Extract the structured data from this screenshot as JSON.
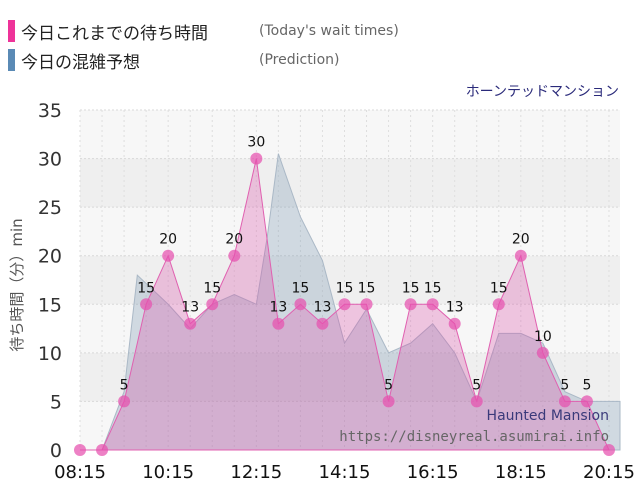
{
  "legend": {
    "actual": {
      "title": "今日これまでの待ち時間",
      "sub": "(Today's wait times)",
      "color": "#ee3399"
    },
    "prediction": {
      "title": "今日の混雑予想",
      "sub": "(Prediction)",
      "color": "#5a8ab5"
    }
  },
  "attraction_name": "ホーンテッドマンション",
  "watermark": {
    "name": "Haunted Mansion",
    "url": "https://disneyreal.asumirai.info"
  },
  "chart_data": {
    "type": "area",
    "ylabel": "待ち時間（分）min",
    "ylim": [
      0,
      35
    ],
    "yticks": [
      0,
      5,
      10,
      15,
      20,
      25,
      30,
      35
    ],
    "xlim": [
      8.25,
      20.5
    ],
    "xticks": [
      {
        "label": "08:15",
        "t": 8.25
      },
      {
        "label": "10:15",
        "t": 10.25
      },
      {
        "label": "12:15",
        "t": 12.25
      },
      {
        "label": "14:15",
        "t": 14.25
      },
      {
        "label": "16:15",
        "t": 16.25
      },
      {
        "label": "18:15",
        "t": 18.25
      },
      {
        "label": "20:15",
        "t": 20.25
      }
    ],
    "grid": true,
    "series": [
      {
        "name": "今日の混雑予想",
        "points": [
          {
            "t": 8.25,
            "v": 0
          },
          {
            "t": 8.75,
            "v": 0
          },
          {
            "t": 9.25,
            "v": 6
          },
          {
            "t": 9.55,
            "v": 18
          },
          {
            "t": 10.25,
            "v": 15
          },
          {
            "t": 10.75,
            "v": 12.5
          },
          {
            "t": 11.25,
            "v": 15
          },
          {
            "t": 11.75,
            "v": 16
          },
          {
            "t": 12.25,
            "v": 15
          },
          {
            "t": 12.5,
            "v": 22
          },
          {
            "t": 12.75,
            "v": 30.5
          },
          {
            "t": 13.25,
            "v": 24
          },
          {
            "t": 13.75,
            "v": 19.5
          },
          {
            "t": 14.25,
            "v": 11
          },
          {
            "t": 14.75,
            "v": 14.5
          },
          {
            "t": 15.25,
            "v": 10
          },
          {
            "t": 15.75,
            "v": 11
          },
          {
            "t": 16.25,
            "v": 13
          },
          {
            "t": 16.75,
            "v": 10
          },
          {
            "t": 17.25,
            "v": 5
          },
          {
            "t": 17.75,
            "v": 12
          },
          {
            "t": 18.25,
            "v": 12
          },
          {
            "t": 18.75,
            "v": 11
          },
          {
            "t": 19.25,
            "v": 6
          },
          {
            "t": 19.75,
            "v": 5
          },
          {
            "t": 20.5,
            "v": 5
          }
        ]
      },
      {
        "name": "今日これまでの待ち時間",
        "points": [
          {
            "t": 8.25,
            "v": 0
          },
          {
            "t": 8.75,
            "v": 0
          },
          {
            "t": 9.25,
            "v": 5
          },
          {
            "t": 9.75,
            "v": 15
          },
          {
            "t": 10.25,
            "v": 20
          },
          {
            "t": 10.75,
            "v": 13
          },
          {
            "t": 11.25,
            "v": 15
          },
          {
            "t": 11.75,
            "v": 20
          },
          {
            "t": 12.25,
            "v": 30
          },
          {
            "t": 12.75,
            "v": 13
          },
          {
            "t": 13.25,
            "v": 15
          },
          {
            "t": 13.75,
            "v": 13
          },
          {
            "t": 14.25,
            "v": 15
          },
          {
            "t": 14.75,
            "v": 15
          },
          {
            "t": 15.25,
            "v": 5
          },
          {
            "t": 15.75,
            "v": 15
          },
          {
            "t": 16.25,
            "v": 15
          },
          {
            "t": 16.75,
            "v": 13
          },
          {
            "t": 17.25,
            "v": 5
          },
          {
            "t": 17.75,
            "v": 15
          },
          {
            "t": 18.25,
            "v": 20
          },
          {
            "t": 18.75,
            "v": 10
          },
          {
            "t": 19.25,
            "v": 5
          },
          {
            "t": 19.75,
            "v": 5
          },
          {
            "t": 20.25,
            "v": 0
          },
          {
            "t": 20.75,
            "v": 0
          }
        ],
        "labels": [
          {
            "t": 9.25,
            "v": 5
          },
          {
            "t": 9.75,
            "v": 15
          },
          {
            "t": 10.25,
            "v": 20
          },
          {
            "t": 10.75,
            "v": 13
          },
          {
            "t": 11.25,
            "v": 15
          },
          {
            "t": 11.75,
            "v": 20
          },
          {
            "t": 12.25,
            "v": 30
          },
          {
            "t": 12.75,
            "v": 13
          },
          {
            "t": 13.25,
            "v": 15
          },
          {
            "t": 13.75,
            "v": 13
          },
          {
            "t": 14.25,
            "v": 15
          },
          {
            "t": 14.75,
            "v": 15
          },
          {
            "t": 15.25,
            "v": 5
          },
          {
            "t": 15.75,
            "v": 15
          },
          {
            "t": 16.25,
            "v": 15
          },
          {
            "t": 16.75,
            "v": 13
          },
          {
            "t": 17.25,
            "v": 5
          },
          {
            "t": 17.75,
            "v": 15
          },
          {
            "t": 18.25,
            "v": 20
          },
          {
            "t": 18.75,
            "v": 10
          },
          {
            "t": 19.25,
            "v": 5
          },
          {
            "t": 19.75,
            "v": 5
          }
        ]
      }
    ]
  }
}
